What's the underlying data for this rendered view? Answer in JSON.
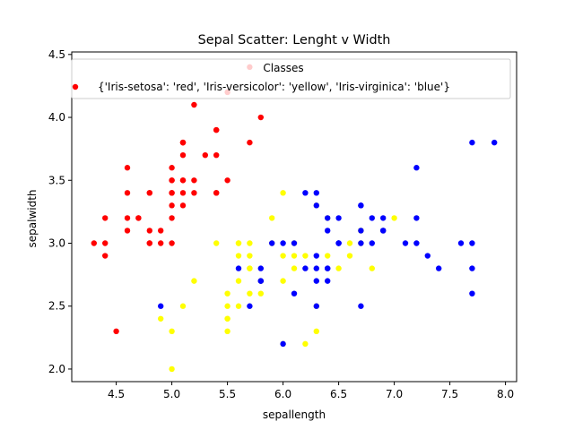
{
  "chart_data": {
    "type": "scatter",
    "title": "Sepal Scatter: Lenght v Width",
    "xlabel": "sepallength",
    "ylabel": "sepalwidth",
    "xlim": [
      4.1,
      8.1
    ],
    "ylim": [
      1.9,
      4.52
    ],
    "xticks": [
      "4.5",
      "5.0",
      "5.5",
      "6.0",
      "6.5",
      "7.0",
      "7.5",
      "8.0"
    ],
    "yticks": [
      "2.0",
      "2.5",
      "3.0",
      "3.5",
      "4.0",
      "4.5"
    ],
    "grid": false,
    "legend": {
      "title": "Classes",
      "placement": "top",
      "entries": [
        "{'Iris-setosa': 'red', 'Iris-versicolor': 'yellow', 'Iris-virginica': 'blue'}"
      ]
    },
    "series": [
      {
        "class": "Iris-setosa",
        "color": "#ff0000",
        "points": [
          [
            5.1,
            3.5
          ],
          [
            4.9,
            3.0
          ],
          [
            4.7,
            3.2
          ],
          [
            4.6,
            3.1
          ],
          [
            5.0,
            3.6
          ],
          [
            5.4,
            3.9
          ],
          [
            4.6,
            3.4
          ],
          [
            5.0,
            3.4
          ],
          [
            4.4,
            2.9
          ],
          [
            4.9,
            3.1
          ],
          [
            5.4,
            3.7
          ],
          [
            4.8,
            3.4
          ],
          [
            4.8,
            3.0
          ],
          [
            4.3,
            3.0
          ],
          [
            5.8,
            4.0
          ],
          [
            5.7,
            4.4
          ],
          [
            5.4,
            3.9
          ],
          [
            5.1,
            3.5
          ],
          [
            5.7,
            3.8
          ],
          [
            5.1,
            3.8
          ],
          [
            5.4,
            3.4
          ],
          [
            5.1,
            3.7
          ],
          [
            4.6,
            3.6
          ],
          [
            5.1,
            3.3
          ],
          [
            4.8,
            3.4
          ],
          [
            5.0,
            3.0
          ],
          [
            5.0,
            3.4
          ],
          [
            5.2,
            3.5
          ],
          [
            5.2,
            3.4
          ],
          [
            4.7,
            3.2
          ],
          [
            4.8,
            3.1
          ],
          [
            5.4,
            3.4
          ],
          [
            5.2,
            4.1
          ],
          [
            5.5,
            4.2
          ],
          [
            5.0,
            3.2
          ],
          [
            5.5,
            3.5
          ],
          [
            4.4,
            3.0
          ],
          [
            5.1,
            3.4
          ],
          [
            5.0,
            3.5
          ],
          [
            4.5,
            2.3
          ],
          [
            4.4,
            3.2
          ],
          [
            5.0,
            3.5
          ],
          [
            5.1,
            3.8
          ],
          [
            4.8,
            3.0
          ],
          [
            5.1,
            3.8
          ],
          [
            4.6,
            3.2
          ],
          [
            5.3,
            3.7
          ],
          [
            5.0,
            3.3
          ]
        ]
      },
      {
        "class": "Iris-versicolor",
        "color": "#ffff00",
        "points": [
          [
            7.0,
            3.2
          ],
          [
            6.4,
            3.2
          ],
          [
            6.9,
            3.1
          ],
          [
            5.5,
            2.3
          ],
          [
            6.5,
            2.8
          ],
          [
            5.7,
            2.8
          ],
          [
            6.3,
            3.3
          ],
          [
            4.9,
            2.4
          ],
          [
            6.6,
            2.9
          ],
          [
            5.2,
            2.7
          ],
          [
            5.0,
            2.0
          ],
          [
            5.9,
            3.0
          ],
          [
            6.0,
            2.2
          ],
          [
            6.1,
            2.9
          ],
          [
            5.6,
            2.9
          ],
          [
            6.7,
            3.1
          ],
          [
            5.6,
            3.0
          ],
          [
            5.8,
            2.7
          ],
          [
            6.2,
            2.2
          ],
          [
            5.6,
            2.5
          ],
          [
            5.9,
            3.2
          ],
          [
            6.1,
            2.8
          ],
          [
            6.3,
            2.5
          ],
          [
            6.4,
            2.9
          ],
          [
            6.6,
            3.0
          ],
          [
            6.8,
            2.8
          ],
          [
            6.7,
            3.0
          ],
          [
            6.0,
            2.9
          ],
          [
            5.7,
            2.6
          ],
          [
            5.5,
            2.4
          ],
          [
            5.5,
            2.4
          ],
          [
            5.8,
            2.7
          ],
          [
            6.0,
            2.7
          ],
          [
            5.4,
            3.0
          ],
          [
            6.0,
            3.4
          ],
          [
            6.7,
            3.1
          ],
          [
            6.3,
            2.3
          ],
          [
            5.6,
            3.0
          ],
          [
            5.5,
            2.5
          ],
          [
            5.5,
            2.6
          ],
          [
            6.1,
            3.0
          ],
          [
            5.8,
            2.6
          ],
          [
            5.0,
            2.3
          ],
          [
            5.6,
            2.7
          ],
          [
            5.7,
            3.0
          ],
          [
            5.7,
            2.9
          ],
          [
            6.2,
            2.9
          ],
          [
            5.1,
            2.5
          ],
          [
            5.7,
            2.8
          ]
        ]
      },
      {
        "class": "Iris-virginica",
        "color": "#0000ff",
        "points": [
          [
            6.3,
            3.3
          ],
          [
            5.8,
            2.7
          ],
          [
            7.1,
            3.0
          ],
          [
            6.3,
            2.9
          ],
          [
            6.5,
            3.0
          ],
          [
            7.6,
            3.0
          ],
          [
            4.9,
            2.5
          ],
          [
            7.3,
            2.9
          ],
          [
            6.7,
            2.5
          ],
          [
            7.2,
            3.6
          ],
          [
            6.5,
            3.2
          ],
          [
            6.4,
            2.7
          ],
          [
            6.8,
            3.0
          ],
          [
            5.7,
            2.5
          ],
          [
            5.8,
            2.8
          ],
          [
            6.4,
            3.2
          ],
          [
            6.5,
            3.0
          ],
          [
            7.7,
            3.8
          ],
          [
            7.7,
            2.6
          ],
          [
            6.0,
            2.2
          ],
          [
            6.9,
            3.2
          ],
          [
            5.6,
            2.8
          ],
          [
            7.7,
            2.8
          ],
          [
            6.3,
            2.7
          ],
          [
            6.7,
            3.3
          ],
          [
            7.2,
            3.2
          ],
          [
            6.2,
            2.8
          ],
          [
            6.1,
            3.0
          ],
          [
            6.4,
            2.8
          ],
          [
            7.2,
            3.0
          ],
          [
            7.4,
            2.8
          ],
          [
            7.9,
            3.8
          ],
          [
            6.4,
            2.8
          ],
          [
            6.3,
            2.8
          ],
          [
            6.1,
            2.6
          ],
          [
            7.7,
            3.0
          ],
          [
            6.3,
            3.4
          ],
          [
            6.4,
            3.1
          ],
          [
            6.0,
            3.0
          ],
          [
            6.9,
            3.1
          ],
          [
            6.7,
            3.1
          ],
          [
            6.9,
            3.1
          ],
          [
            5.8,
            2.7
          ],
          [
            6.8,
            3.2
          ],
          [
            6.7,
            3.3
          ],
          [
            6.7,
            3.0
          ],
          [
            6.3,
            2.5
          ],
          [
            6.5,
            3.0
          ],
          [
            6.2,
            3.4
          ],
          [
            5.9,
            3.0
          ]
        ]
      }
    ]
  }
}
